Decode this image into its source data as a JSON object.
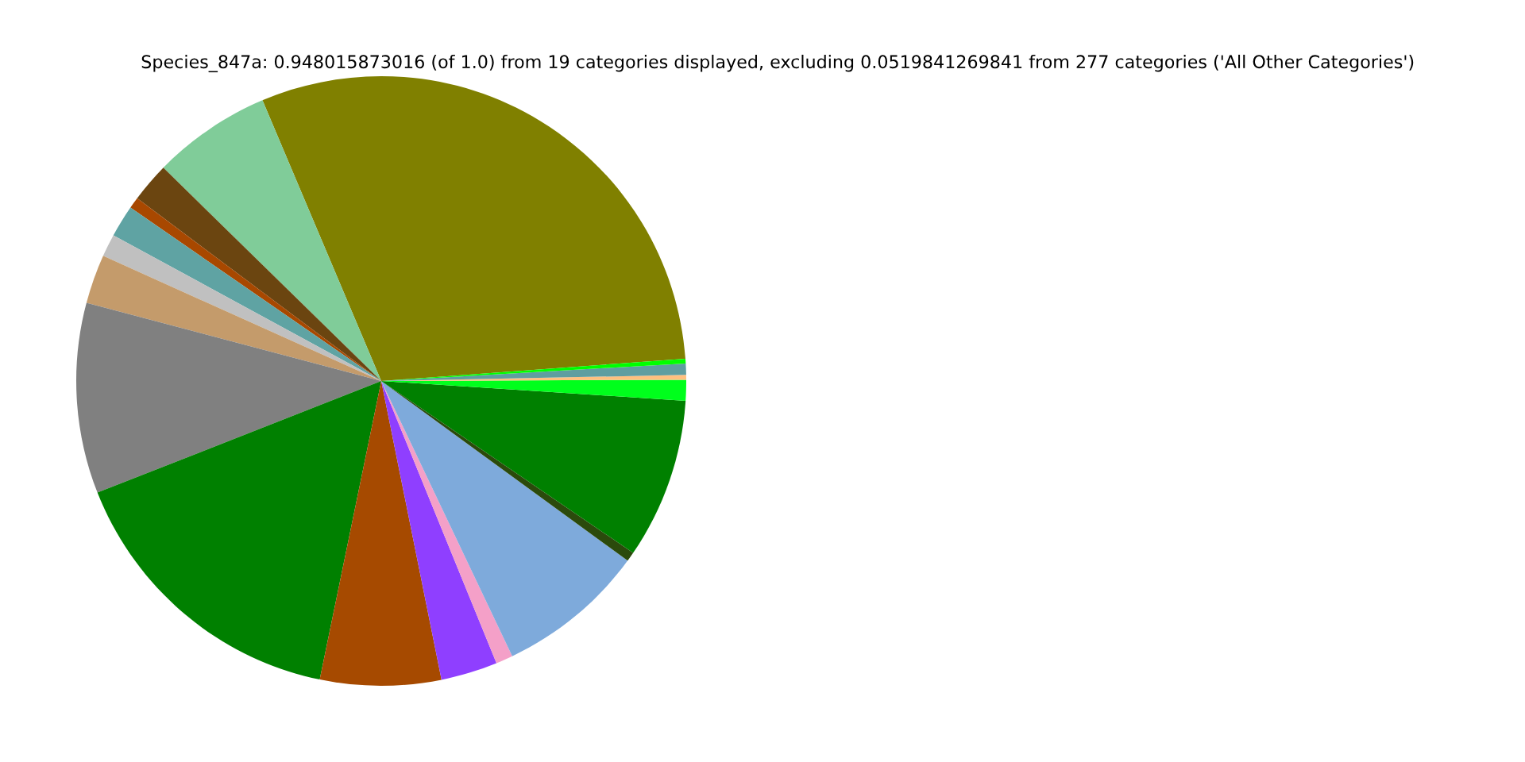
{
  "chart_data": {
    "type": "pie",
    "title": "Species_847a: 0.948015873016 (of 1.0) from 19 categories displayed, excluding 0.0519841269841 from 277 categories ('All Other Categories')",
    "categories": [
      null,
      null,
      null,
      null,
      null,
      null,
      null,
      null,
      null,
      null,
      null,
      null,
      null,
      null,
      null,
      null,
      null,
      null,
      null
    ],
    "values": [
      30.2,
      6.3,
      2.1,
      0.6,
      1.7,
      1.2,
      2.6,
      10.1,
      15.8,
      6.4,
      3.0,
      0.9,
      7.9,
      0.5,
      8.5,
      1.1,
      0.25,
      0.6,
      0.25
    ],
    "colors": [
      "#808000",
      "#80cc99",
      "#6b4510",
      "#a84800",
      "#5fa3a3",
      "#c0c0c0",
      "#c49b6b",
      "#808080",
      "#008000",
      "#a64a00",
      "#8f3fff",
      "#f4a0c8",
      "#7eaadb",
      "#2b4a0c",
      "#008000",
      "#00ff1c",
      "#ffc07f",
      "#5f9ea0",
      "#00ff00"
    ],
    "legend": false
  }
}
